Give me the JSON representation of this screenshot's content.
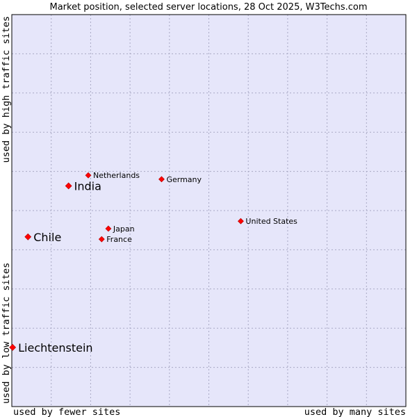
{
  "chart_data": {
    "type": "scatter",
    "title": "Market position, selected server locations, 28 Oct 2025, W3Techs.com",
    "xlabel_left": "used by fewer sites",
    "xlabel_right": "used by many sites",
    "ylabel_bottom": "used by low traffic sites",
    "ylabel_top": "used by high traffic sites",
    "xlim": [
      0,
      10
    ],
    "ylim": [
      0,
      10
    ],
    "grid": true,
    "points": [
      {
        "label": "Netherlands",
        "x": 1.94,
        "y": 5.9,
        "highlight": false
      },
      {
        "label": "India",
        "x": 1.44,
        "y": 5.63,
        "highlight": true
      },
      {
        "label": "Germany",
        "x": 3.8,
        "y": 5.8,
        "highlight": false
      },
      {
        "label": "United States",
        "x": 5.81,
        "y": 4.73,
        "highlight": false
      },
      {
        "label": "Japan",
        "x": 2.45,
        "y": 4.54,
        "highlight": false
      },
      {
        "label": "Chile",
        "x": 0.41,
        "y": 4.33,
        "highlight": true
      },
      {
        "label": "France",
        "x": 2.28,
        "y": 4.27,
        "highlight": false
      },
      {
        "label": "Liechtenstein",
        "x": 0.02,
        "y": 1.51,
        "highlight": true
      }
    ]
  },
  "colors": {
    "plot_bg": "#e6e6fa",
    "grid": "#a8a8c4",
    "border": "#000000",
    "point": "#ff0000"
  }
}
